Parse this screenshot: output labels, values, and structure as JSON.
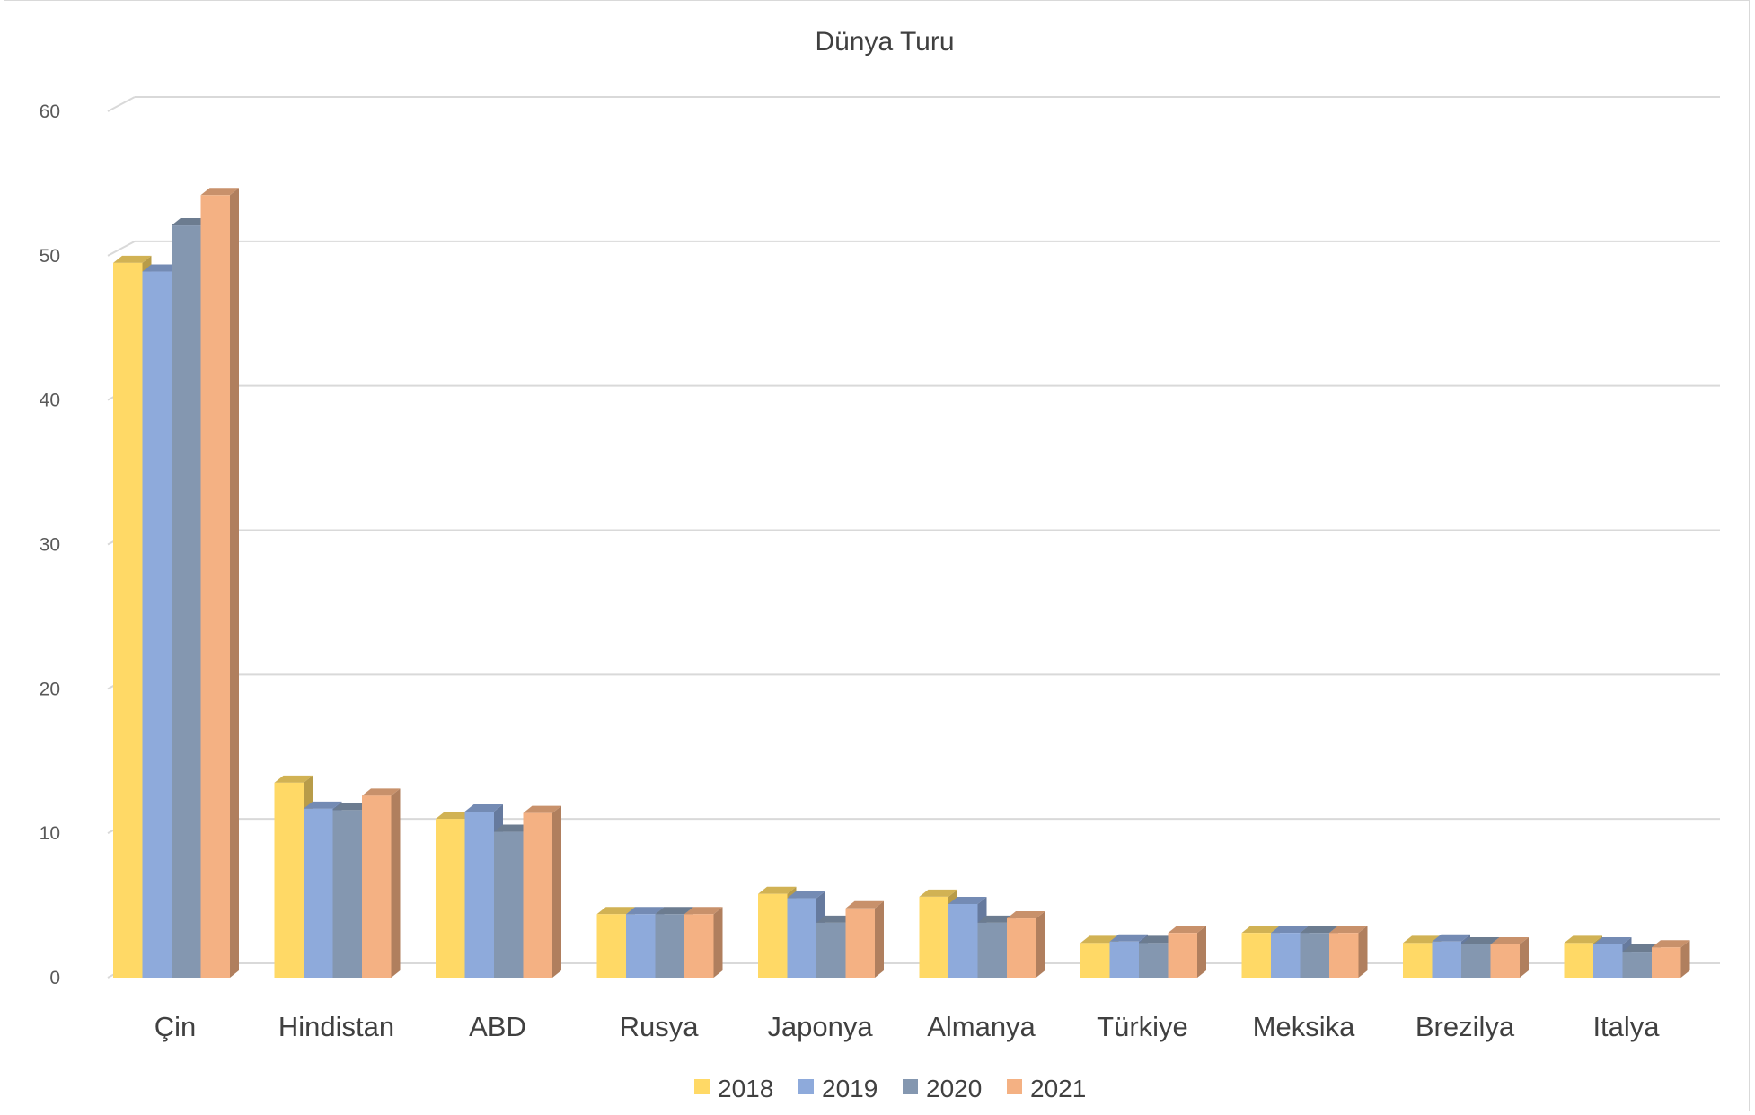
{
  "chart_data": {
    "type": "bar",
    "title": "Dünya Turu",
    "xlabel": "",
    "ylabel": "",
    "ylim": [
      0,
      60
    ],
    "yticks": [
      0,
      10,
      20,
      30,
      40,
      50,
      60
    ],
    "grid": true,
    "legend_position": "bottom",
    "categories": [
      "Çin",
      "Hindistan",
      "ABD",
      "Rusya",
      "Japonya",
      "Almanya",
      "Türkiye",
      "Meksika",
      "Brezilya",
      "Italya"
    ],
    "series": [
      {
        "name": "2018",
        "color": "#FFD966",
        "values": [
          49.5,
          13.5,
          11,
          4.4,
          5.8,
          5.6,
          2.4,
          3.1,
          2.4,
          2.4
        ]
      },
      {
        "name": "2019",
        "color": "#8EAADB",
        "values": [
          48.9,
          11.7,
          11.5,
          4.4,
          5.5,
          5.1,
          2.5,
          3.1,
          2.5,
          2.3
        ]
      },
      {
        "name": "2020",
        "color": "#8497B0",
        "values": [
          52.1,
          11.6,
          10.1,
          4.4,
          3.8,
          3.8,
          2.4,
          3.1,
          2.3,
          1.8
        ]
      },
      {
        "name": "2021",
        "color": "#F4B183",
        "values": [
          54.2,
          12.6,
          11.4,
          4.4,
          4.8,
          4.1,
          3.1,
          3.1,
          2.3,
          2.1
        ]
      }
    ]
  }
}
